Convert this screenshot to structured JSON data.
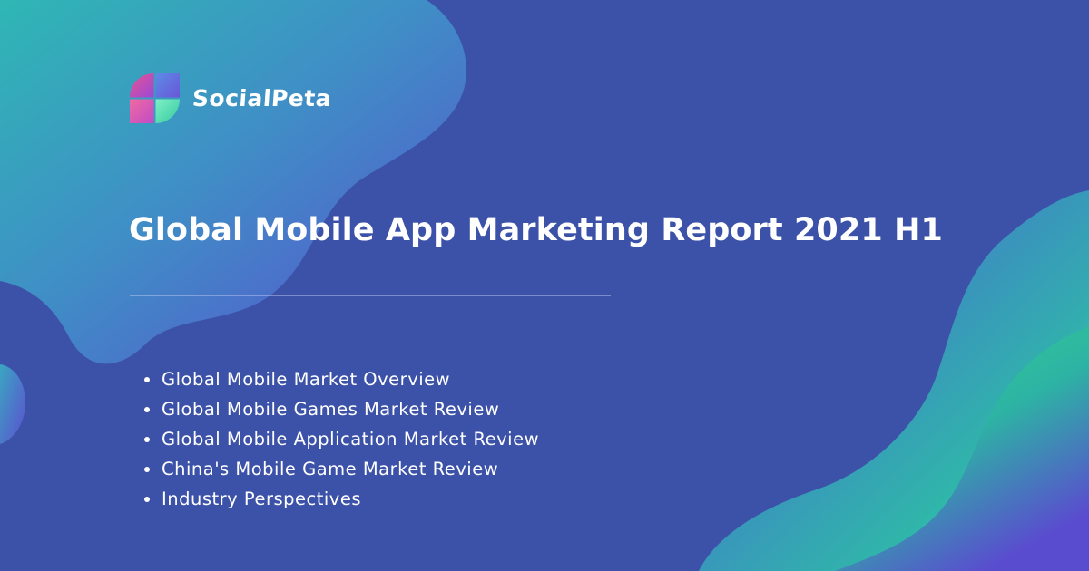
{
  "brand": {
    "name": "SocialPeta",
    "logo_icon": "socialpeta-logo-icon"
  },
  "report": {
    "title": "Global Mobile App Marketing Report 2021 H1"
  },
  "topics": [
    "Global Mobile Market Overview",
    "Global Mobile Games Market Review",
    "Global Mobile Application Market Review",
    "China's Mobile Game Market Review",
    "Industry Perspectives"
  ],
  "colors": {
    "background": "#3c52a8",
    "blob_teal": "#2fb7b4",
    "blob_purple": "#5a4ccf",
    "blob_green": "#34d98a",
    "text": "#ffffff"
  }
}
